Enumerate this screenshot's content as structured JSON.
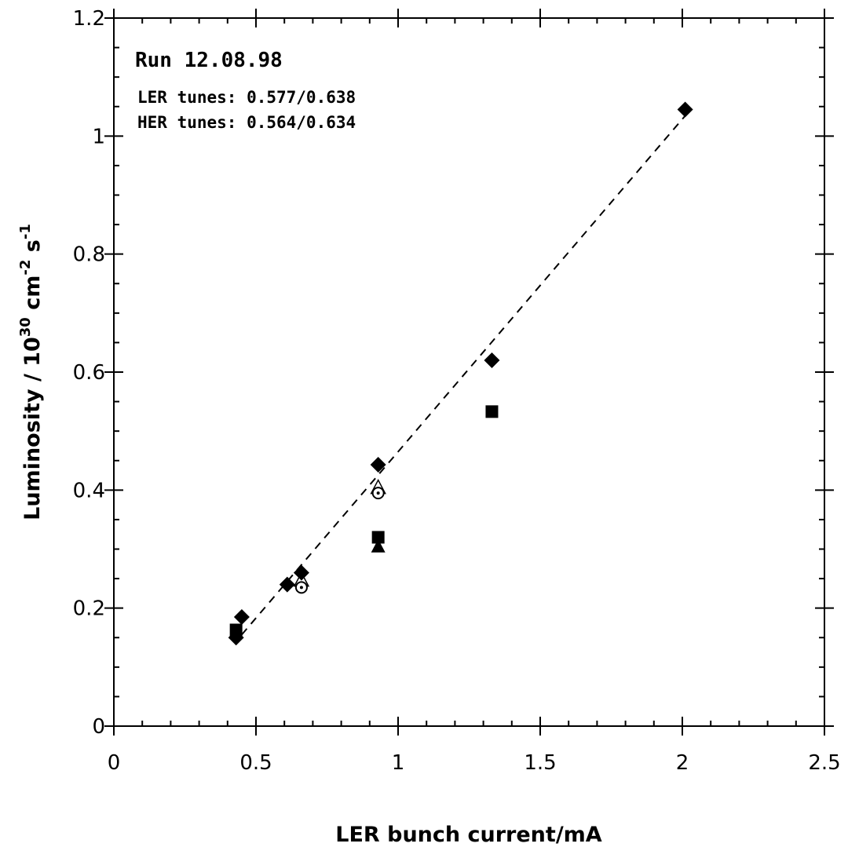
{
  "chart_data": {
    "type": "scatter",
    "title": "",
    "xlabel": "LER bunch current/mA",
    "ylabel": {
      "base": "Luminosity / 10",
      "exp1": "30",
      "mid1": " cm",
      "exp2": "-2",
      "mid2": " s",
      "exp3": "-1"
    },
    "xlim": [
      0,
      2.5
    ],
    "ylim": [
      0,
      1.2
    ],
    "xticks": [
      0,
      0.5,
      1,
      1.5,
      2,
      2.5
    ],
    "yticks": [
      0,
      0.2,
      0.4,
      0.6,
      0.8,
      1,
      1.2
    ],
    "xtick_labels": [
      "0",
      "0.5",
      "1",
      "1.5",
      "2",
      "2.5"
    ],
    "ytick_labels": [
      "0",
      "0.2",
      "0.4",
      "0.6",
      "0.8",
      "1",
      "1.2"
    ],
    "grid": false,
    "annotations": {
      "run": "Run 12.08.98",
      "ler_tunes": "LER tunes: 0.577/0.638",
      "her_tunes": "HER tunes: 0.564/0.634"
    },
    "series": [
      {
        "marker": "diamond",
        "points": [
          [
            0.43,
            0.15
          ],
          [
            0.45,
            0.185
          ],
          [
            0.61,
            0.24
          ],
          [
            0.66,
            0.26
          ],
          [
            0.93,
            0.443
          ],
          [
            1.33,
            0.62
          ],
          [
            2.01,
            1.045
          ]
        ]
      },
      {
        "marker": "square",
        "points": [
          [
            0.43,
            0.163
          ],
          [
            0.93,
            0.32
          ],
          [
            1.33,
            0.533
          ]
        ]
      },
      {
        "marker": "triangle",
        "points": [
          [
            0.93,
            0.305
          ]
        ]
      },
      {
        "marker": "open-triangle",
        "points": [
          [
            0.66,
            0.248
          ],
          [
            0.93,
            0.405
          ]
        ]
      },
      {
        "marker": "open-circle-dot",
        "points": [
          [
            0.66,
            0.235
          ],
          [
            0.93,
            0.395
          ]
        ]
      }
    ],
    "fit_line": {
      "style": "dashed",
      "x": [
        0.45,
        2.02
      ],
      "y": [
        0.155,
        1.04
      ]
    }
  }
}
